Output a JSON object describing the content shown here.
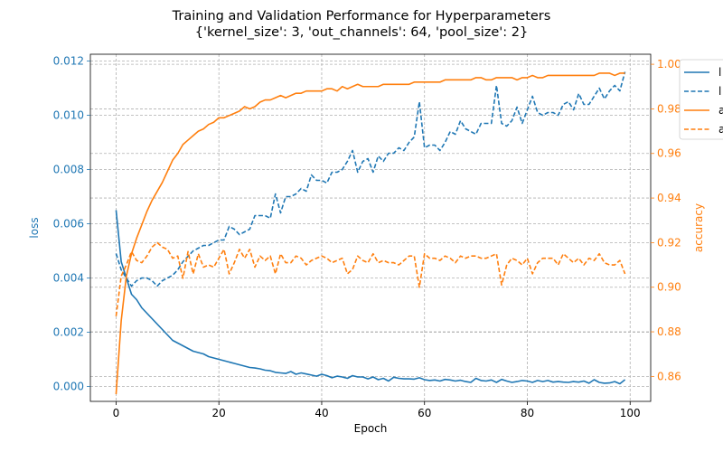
{
  "chart_data": {
    "type": "line",
    "title_line1": "Training and Validation Performance for Hyperparameters",
    "title_line2": "{'kernel_size': 3, 'out_channels': 64, 'pool_size': 2}",
    "xlabel": "Epoch",
    "ylabel_left": "loss",
    "ylabel_right": "accuracy",
    "xlim": [
      -5,
      104
    ],
    "ylim_left": [
      -0.00055,
      0.01225
    ],
    "ylim_right": [
      0.8488,
      1.0045
    ],
    "x_ticks": [
      0,
      20,
      40,
      60,
      80,
      100
    ],
    "x_tick_labels": [
      "0",
      "20",
      "40",
      "60",
      "80",
      "100"
    ],
    "y_left_ticks": [
      0.0,
      0.002,
      0.004,
      0.006,
      0.008,
      0.01,
      0.012
    ],
    "y_left_tick_labels": [
      "0.000",
      "0.002",
      "0.004",
      "0.006",
      "0.008",
      "0.010",
      "0.012"
    ],
    "y_right_ticks": [
      0.86,
      0.88,
      0.9,
      0.92,
      0.94,
      0.96,
      0.98,
      1.0
    ],
    "y_right_tick_labels": [
      "0.86",
      "0.88",
      "0.90",
      "0.92",
      "0.94",
      "0.96",
      "0.98",
      "1.00"
    ],
    "grid": true,
    "legend_placement": "top-right outside",
    "colors": {
      "loss": "#1f77b4",
      "accuracy": "#ff7f0e",
      "grid": "#b0b0b0",
      "axis": "#000000"
    },
    "series": [
      {
        "name": "l",
        "axis": "left",
        "style": "solid",
        "color": "#1f77b4",
        "x": [
          0,
          1,
          2,
          3,
          4,
          5,
          6,
          7,
          8,
          9,
          10,
          11,
          12,
          13,
          14,
          15,
          16,
          17,
          18,
          19,
          20,
          21,
          22,
          23,
          24,
          25,
          26,
          27,
          28,
          29,
          30,
          31,
          32,
          33,
          34,
          35,
          36,
          37,
          38,
          39,
          40,
          41,
          42,
          43,
          44,
          45,
          46,
          47,
          48,
          49,
          50,
          51,
          52,
          53,
          54,
          55,
          56,
          57,
          58,
          59,
          60,
          61,
          62,
          63,
          64,
          65,
          66,
          67,
          68,
          69,
          70,
          71,
          72,
          73,
          74,
          75,
          76,
          77,
          78,
          79,
          80,
          81,
          82,
          83,
          84,
          85,
          86,
          87,
          88,
          89,
          90,
          91,
          92,
          93,
          94,
          95,
          96,
          97,
          98,
          99
        ],
        "values": [
          0.0065,
          0.0046,
          0.004,
          0.0034,
          0.0032,
          0.0029,
          0.0027,
          0.0025,
          0.0023,
          0.0021,
          0.0019,
          0.0017,
          0.0016,
          0.0015,
          0.0014,
          0.0013,
          0.00125,
          0.0012,
          0.0011,
          0.00105,
          0.001,
          0.00095,
          0.0009,
          0.00085,
          0.0008,
          0.00075,
          0.0007,
          0.00068,
          0.00065,
          0.0006,
          0.00058,
          0.00052,
          0.0005,
          0.00048,
          0.00055,
          0.00045,
          0.0005,
          0.00046,
          0.00042,
          0.00038,
          0.00045,
          0.0004,
          0.00032,
          0.00038,
          0.00035,
          0.0003,
          0.0004,
          0.00035,
          0.00035,
          0.00028,
          0.00035,
          0.00025,
          0.0003,
          0.0002,
          0.00034,
          0.0003,
          0.00028,
          0.00028,
          0.00027,
          0.00032,
          0.00025,
          0.00022,
          0.00024,
          0.0002,
          0.00026,
          0.00024,
          0.0002,
          0.00023,
          0.00018,
          0.00015,
          0.0003,
          0.00022,
          0.0002,
          0.00024,
          0.00015,
          0.00026,
          0.0002,
          0.00015,
          0.00018,
          0.00022,
          0.0002,
          0.00015,
          0.00022,
          0.00018,
          0.00022,
          0.00016,
          0.00018,
          0.00016,
          0.00015,
          0.00018,
          0.00016,
          0.0002,
          0.00012,
          0.00025,
          0.00015,
          0.00012,
          0.00013,
          0.00018,
          0.0001,
          0.00025
        ]
      },
      {
        "name": "l",
        "axis": "left",
        "style": "dashed",
        "color": "#1f77b4",
        "x": [
          0,
          1,
          2,
          3,
          4,
          5,
          6,
          7,
          8,
          9,
          10,
          11,
          12,
          13,
          14,
          15,
          16,
          17,
          18,
          19,
          20,
          21,
          22,
          23,
          24,
          25,
          26,
          27,
          28,
          29,
          30,
          31,
          32,
          33,
          34,
          35,
          36,
          37,
          38,
          39,
          40,
          41,
          42,
          43,
          44,
          45,
          46,
          47,
          48,
          49,
          50,
          51,
          52,
          53,
          54,
          55,
          56,
          57,
          58,
          59,
          60,
          61,
          62,
          63,
          64,
          65,
          66,
          67,
          68,
          69,
          70,
          71,
          72,
          73,
          74,
          75,
          76,
          77,
          78,
          79,
          80,
          81,
          82,
          83,
          84,
          85,
          86,
          87,
          88,
          89,
          90,
          91,
          92,
          93,
          94,
          95,
          96,
          97,
          98,
          99
        ],
        "values": [
          0.0049,
          0.0043,
          0.004,
          0.0037,
          0.0039,
          0.004,
          0.004,
          0.0039,
          0.0037,
          0.0039,
          0.004,
          0.0041,
          0.0043,
          0.0046,
          0.0048,
          0.005,
          0.0051,
          0.0052,
          0.0052,
          0.0053,
          0.0054,
          0.0054,
          0.0059,
          0.0058,
          0.0056,
          0.0057,
          0.0058,
          0.0063,
          0.0063,
          0.0063,
          0.0062,
          0.0071,
          0.0064,
          0.007,
          0.007,
          0.0071,
          0.0073,
          0.0072,
          0.0078,
          0.0076,
          0.0076,
          0.0075,
          0.0079,
          0.0079,
          0.008,
          0.0083,
          0.0087,
          0.0079,
          0.0083,
          0.0084,
          0.0079,
          0.0085,
          0.0083,
          0.0086,
          0.0086,
          0.0088,
          0.0087,
          0.009,
          0.0092,
          0.0105,
          0.0088,
          0.0089,
          0.0089,
          0.0087,
          0.009,
          0.0094,
          0.0093,
          0.0098,
          0.0095,
          0.0094,
          0.0093,
          0.0097,
          0.0097,
          0.0097,
          0.0111,
          0.0097,
          0.0096,
          0.0098,
          0.0103,
          0.0097,
          0.0102,
          0.0107,
          0.0101,
          0.01,
          0.0101,
          0.0101,
          0.01,
          0.0104,
          0.0105,
          0.0102,
          0.0108,
          0.0104,
          0.0104,
          0.0107,
          0.011,
          0.0106,
          0.0109,
          0.0111,
          0.0109,
          0.0116
        ]
      },
      {
        "name": "a",
        "axis": "right",
        "style": "solid",
        "color": "#ff7f0e",
        "x": [
          0,
          1,
          2,
          3,
          4,
          5,
          6,
          7,
          8,
          9,
          10,
          11,
          12,
          13,
          14,
          15,
          16,
          17,
          18,
          19,
          20,
          21,
          22,
          23,
          24,
          25,
          26,
          27,
          28,
          29,
          30,
          31,
          32,
          33,
          34,
          35,
          36,
          37,
          38,
          39,
          40,
          41,
          42,
          43,
          44,
          45,
          46,
          47,
          48,
          49,
          50,
          51,
          52,
          53,
          54,
          55,
          56,
          57,
          58,
          59,
          60,
          61,
          62,
          63,
          64,
          65,
          66,
          67,
          68,
          69,
          70,
          71,
          72,
          73,
          74,
          75,
          76,
          77,
          78,
          79,
          80,
          81,
          82,
          83,
          84,
          85,
          86,
          87,
          88,
          89,
          90,
          91,
          92,
          93,
          94,
          95,
          96,
          97,
          98,
          99
        ],
        "values": [
          0.852,
          0.885,
          0.905,
          0.915,
          0.922,
          0.928,
          0.934,
          0.939,
          0.943,
          0.947,
          0.952,
          0.957,
          0.96,
          0.964,
          0.966,
          0.968,
          0.97,
          0.971,
          0.973,
          0.974,
          0.976,
          0.976,
          0.977,
          0.978,
          0.979,
          0.981,
          0.98,
          0.981,
          0.983,
          0.984,
          0.984,
          0.985,
          0.986,
          0.985,
          0.986,
          0.987,
          0.987,
          0.988,
          0.988,
          0.988,
          0.988,
          0.989,
          0.989,
          0.988,
          0.99,
          0.989,
          0.99,
          0.991,
          0.99,
          0.99,
          0.99,
          0.99,
          0.991,
          0.991,
          0.991,
          0.991,
          0.991,
          0.991,
          0.992,
          0.992,
          0.992,
          0.992,
          0.992,
          0.992,
          0.993,
          0.993,
          0.993,
          0.993,
          0.993,
          0.993,
          0.994,
          0.994,
          0.993,
          0.993,
          0.994,
          0.994,
          0.994,
          0.994,
          0.993,
          0.994,
          0.994,
          0.995,
          0.994,
          0.994,
          0.995,
          0.995,
          0.995,
          0.995,
          0.995,
          0.995,
          0.995,
          0.995,
          0.995,
          0.995,
          0.996,
          0.996,
          0.996,
          0.995,
          0.996,
          0.996
        ]
      },
      {
        "name": "a",
        "axis": "right",
        "style": "dashed",
        "color": "#ff7f0e",
        "x": [
          0,
          1,
          2,
          3,
          4,
          5,
          6,
          7,
          8,
          9,
          10,
          11,
          12,
          13,
          14,
          15,
          16,
          17,
          18,
          19,
          20,
          21,
          22,
          23,
          24,
          25,
          26,
          27,
          28,
          29,
          30,
          31,
          32,
          33,
          34,
          35,
          36,
          37,
          38,
          39,
          40,
          41,
          42,
          43,
          44,
          45,
          46,
          47,
          48,
          49,
          50,
          51,
          52,
          53,
          54,
          55,
          56,
          57,
          58,
          59,
          60,
          61,
          62,
          63,
          64,
          65,
          66,
          67,
          68,
          69,
          70,
          71,
          72,
          73,
          74,
          75,
          76,
          77,
          78,
          79,
          80,
          81,
          82,
          83,
          84,
          85,
          86,
          87,
          88,
          89,
          90,
          91,
          92,
          93,
          94,
          95,
          96,
          97,
          98,
          99
        ],
        "values": [
          0.887,
          0.905,
          0.91,
          0.916,
          0.912,
          0.911,
          0.914,
          0.918,
          0.92,
          0.918,
          0.917,
          0.913,
          0.914,
          0.904,
          0.916,
          0.906,
          0.915,
          0.909,
          0.91,
          0.909,
          0.913,
          0.917,
          0.906,
          0.911,
          0.917,
          0.913,
          0.917,
          0.909,
          0.914,
          0.912,
          0.914,
          0.906,
          0.915,
          0.911,
          0.911,
          0.914,
          0.913,
          0.91,
          0.912,
          0.913,
          0.914,
          0.913,
          0.911,
          0.912,
          0.913,
          0.906,
          0.908,
          0.914,
          0.912,
          0.911,
          0.915,
          0.911,
          0.912,
          0.911,
          0.911,
          0.91,
          0.912,
          0.914,
          0.914,
          0.9,
          0.915,
          0.913,
          0.913,
          0.912,
          0.914,
          0.913,
          0.911,
          0.914,
          0.913,
          0.914,
          0.914,
          0.913,
          0.913,
          0.914,
          0.915,
          0.901,
          0.91,
          0.913,
          0.912,
          0.91,
          0.913,
          0.906,
          0.911,
          0.913,
          0.913,
          0.913,
          0.91,
          0.915,
          0.913,
          0.911,
          0.913,
          0.91,
          0.913,
          0.912,
          0.915,
          0.911,
          0.91,
          0.91,
          0.912,
          0.906
        ]
      }
    ]
  }
}
